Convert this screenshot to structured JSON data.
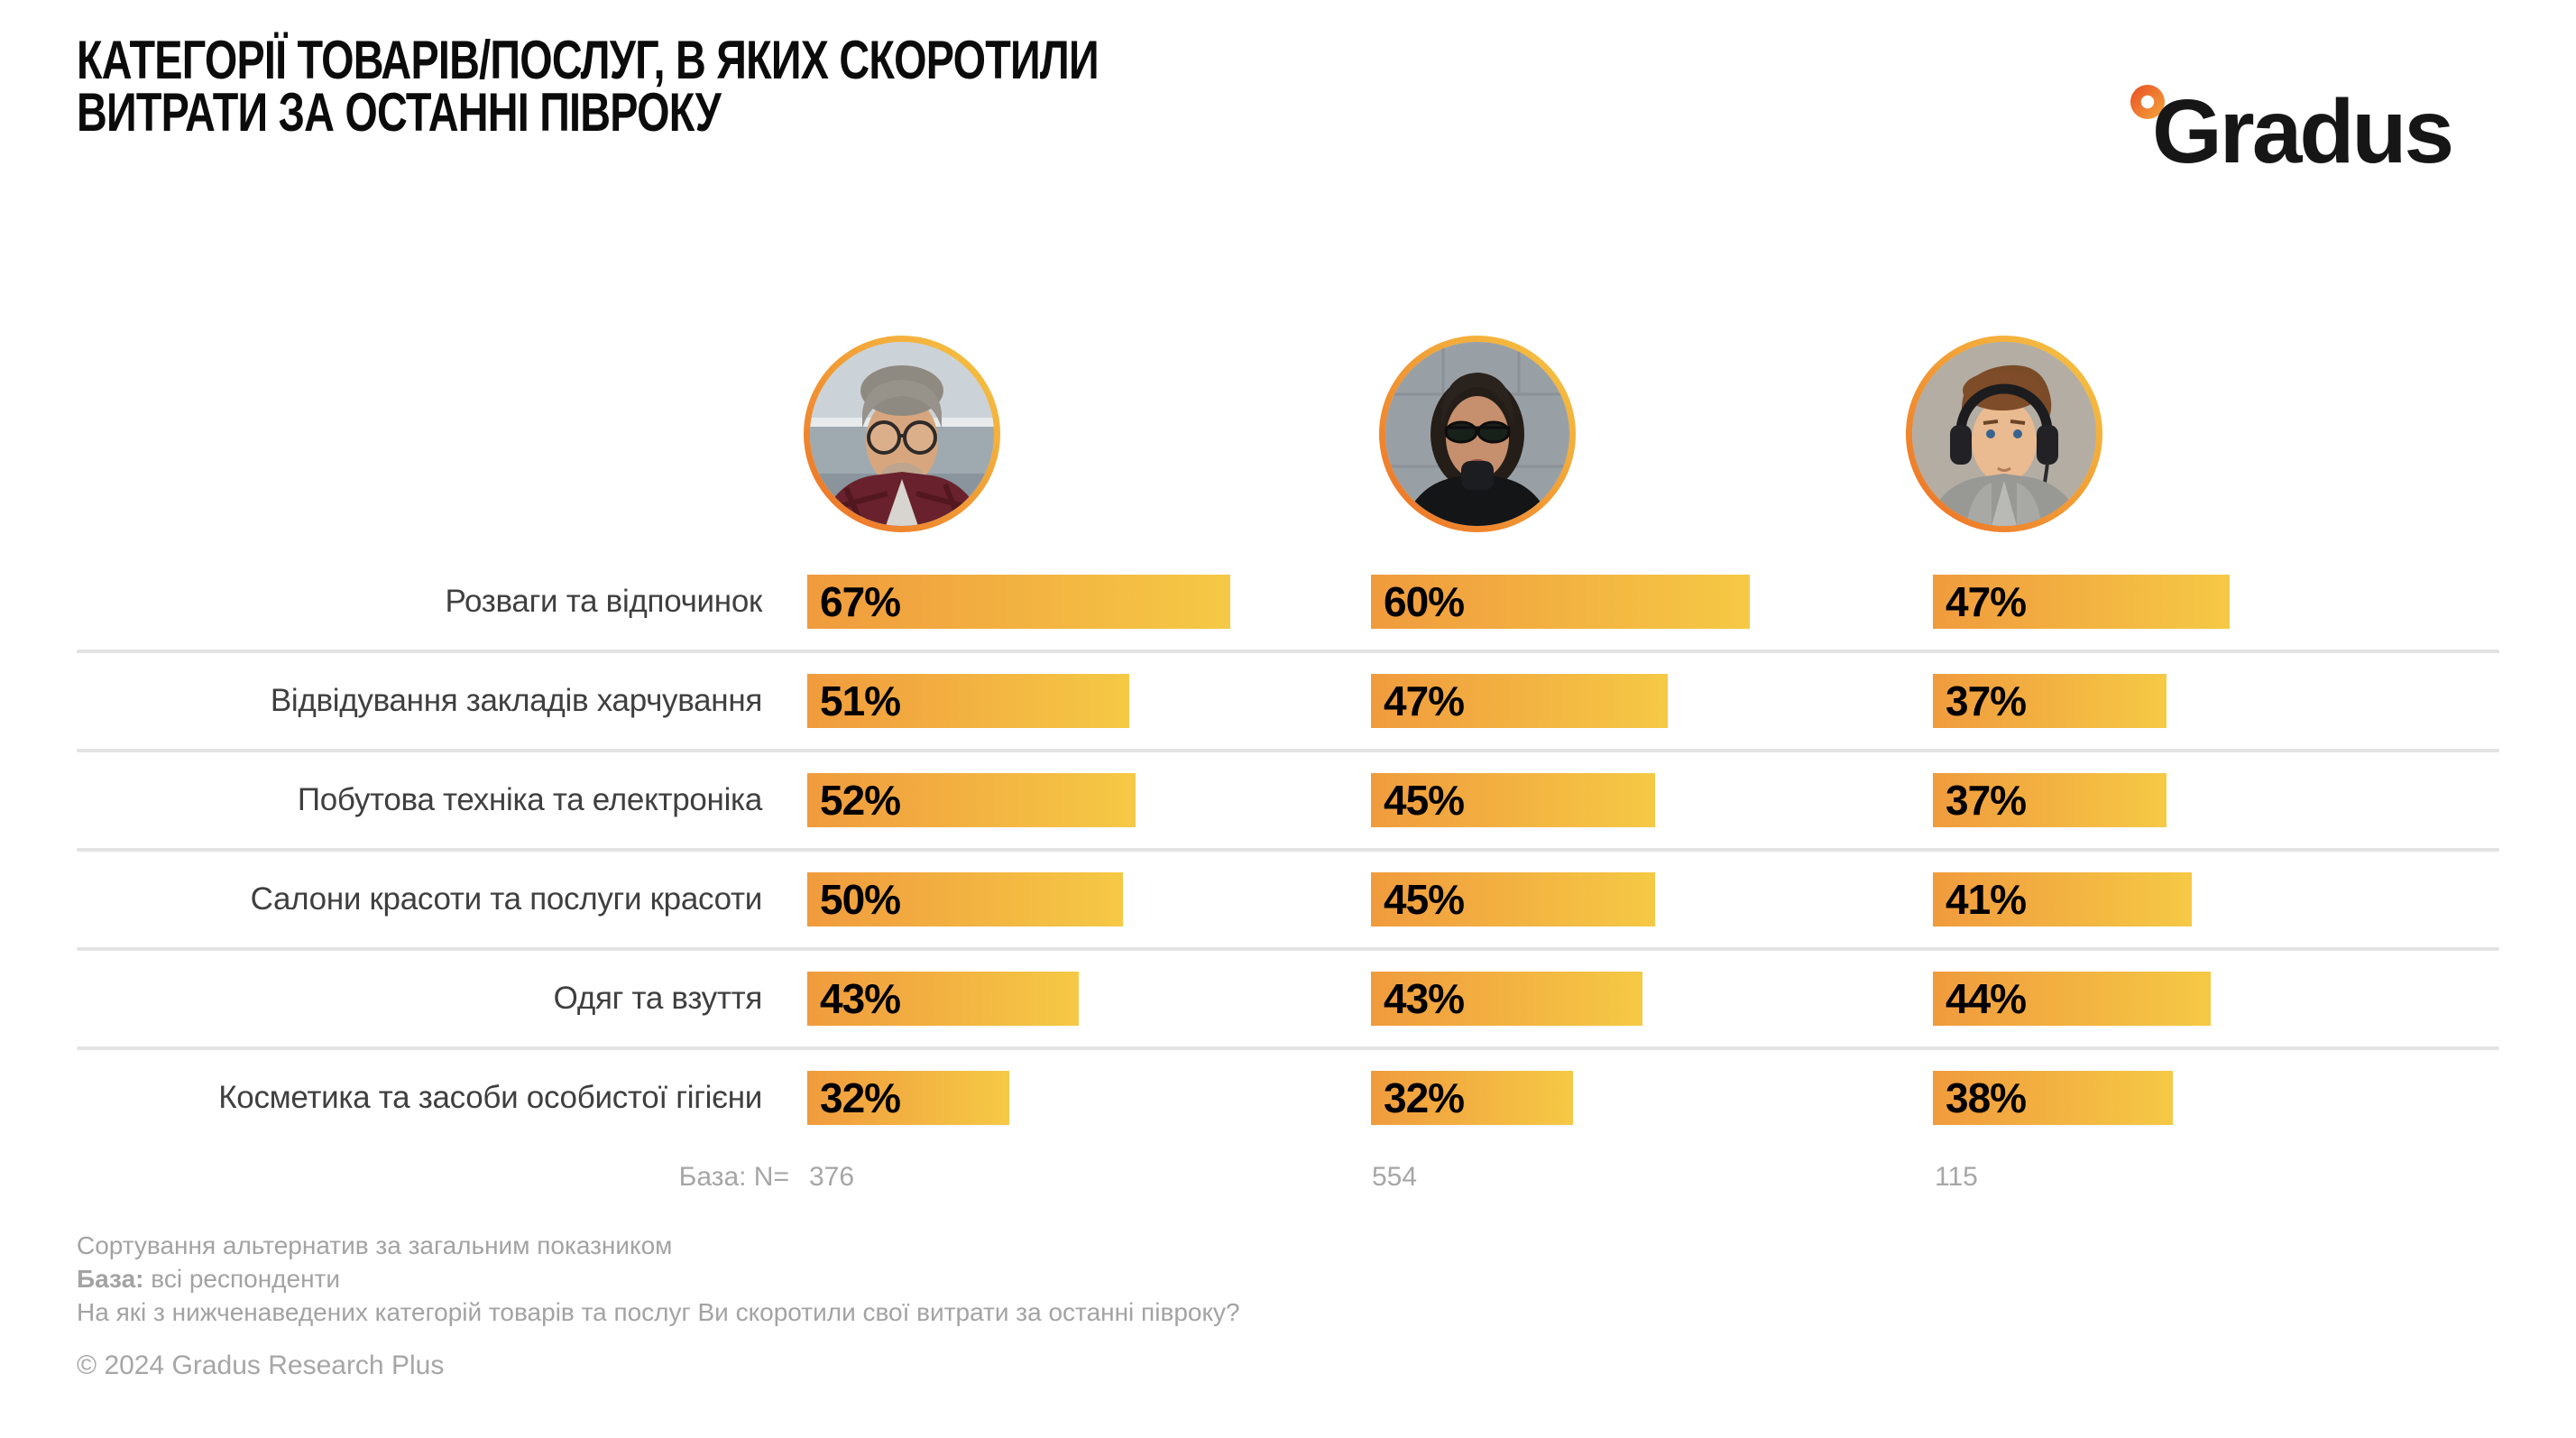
{
  "title": {
    "line1": "КАТЕГОРІЇ ТОВАРІВ/ПОСЛУГ, В ЯКИХ СКОРОТИЛИ",
    "line2": "ВИТРАТИ ЗА ОСТАННІ ПІВРОКУ"
  },
  "logo": {
    "text": "Gradus"
  },
  "chart_data": {
    "type": "bar",
    "orientation": "horizontal",
    "unit": "%",
    "title": "КАТЕГОРІЇ ТОВАРІВ/ПОСЛУГ, В ЯКИХ СКОРОТИЛИ ВИТРАТИ ЗА ОСТАННІ ПІВРОКУ",
    "categories": [
      "Розваги та відпочинок",
      "Відвідування закладів харчування",
      "Побутова техніка та електроніка",
      "Салони красоти та послуги красоти",
      "Одяг та взуття",
      "Косметика та засоби особистої гігієни"
    ],
    "series": [
      {
        "name": "avatar-man-glasses",
        "base_n": "376",
        "values": [
          67,
          51,
          52,
          50,
          43,
          32
        ]
      },
      {
        "name": "avatar-woman-sunglasses",
        "base_n": "554",
        "values": [
          60,
          47,
          45,
          45,
          43,
          32
        ]
      },
      {
        "name": "avatar-teen-headphones",
        "base_n": "115",
        "values": [
          47,
          37,
          37,
          41,
          44,
          38
        ]
      }
    ],
    "xlim": [
      0,
      100
    ],
    "value_labels": "inside-start",
    "legend": "avatars-above-columns",
    "grid": "horizontal-row-separators"
  },
  "base_row": {
    "label": "База: N=",
    "values": [
      "376",
      "554",
      "115"
    ]
  },
  "footer": {
    "sorting_note": "Сортування альтернатив за загальним показником",
    "base_label": "База:",
    "base_text": " всі респонденти",
    "question": "На які з нижченаведених категорій товарів та послуг Ви скоротили свої витрати за останні півроку?",
    "copyright": "© 2024 Gradus Research Plus"
  },
  "colors": {
    "bar_start": "#F09B3D",
    "bar_end": "#F5C945",
    "ring_start": "#ED6F26",
    "ring_end": "#F6C844",
    "separator": "#E3E3E3",
    "label_text": "#3F3F3F",
    "muted_text": "#A6A6A6"
  }
}
